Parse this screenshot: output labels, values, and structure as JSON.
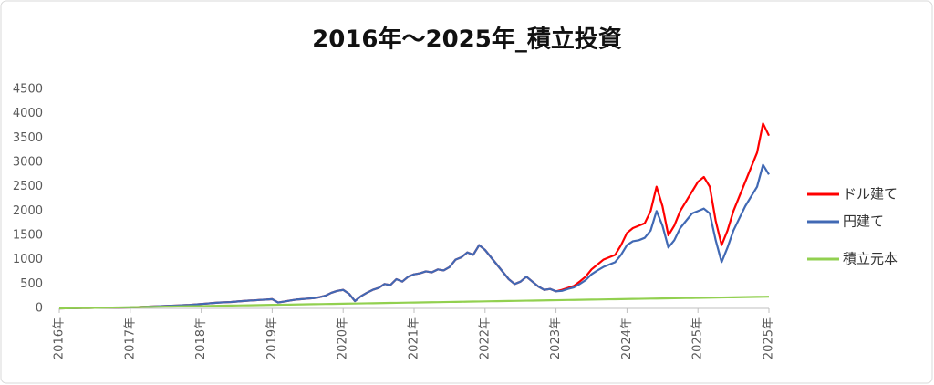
{
  "chart_data": {
    "type": "line",
    "title": "2016年～2025年_積立投資",
    "categories": [
      "2016年",
      null,
      null,
      null,
      null,
      null,
      null,
      null,
      null,
      null,
      null,
      null,
      "2017年",
      null,
      null,
      null,
      null,
      null,
      null,
      null,
      null,
      null,
      null,
      null,
      "2018年",
      null,
      null,
      null,
      null,
      null,
      null,
      null,
      null,
      null,
      null,
      null,
      "2019年",
      null,
      null,
      null,
      null,
      null,
      null,
      null,
      null,
      null,
      null,
      null,
      "2020年",
      null,
      null,
      null,
      null,
      null,
      null,
      null,
      null,
      null,
      null,
      null,
      "2021年",
      null,
      null,
      null,
      null,
      null,
      null,
      null,
      null,
      null,
      null,
      null,
      "2022年",
      null,
      null,
      null,
      null,
      null,
      null,
      null,
      null,
      null,
      null,
      null,
      "2023年",
      null,
      null,
      null,
      null,
      null,
      null,
      null,
      null,
      null,
      null,
      null,
      "2024年",
      null,
      null,
      null,
      null,
      null,
      null,
      null,
      null,
      null,
      null,
      null,
      "2025年",
      null,
      null,
      null,
      null,
      null,
      null,
      null,
      null,
      null,
      null,
      null,
      "2025年"
    ],
    "series": [
      {
        "name": "ドル建て",
        "color": "#ff0000",
        "values": [
          0,
          2,
          4,
          6,
          8,
          10,
          12,
          14,
          15,
          16,
          17,
          18,
          20,
          25,
          30,
          35,
          40,
          45,
          50,
          55,
          60,
          65,
          70,
          80,
          90,
          100,
          110,
          120,
          125,
          130,
          140,
          150,
          160,
          165,
          175,
          180,
          190,
          120,
          140,
          160,
          180,
          190,
          200,
          210,
          230,
          260,
          320,
          360,
          380,
          300,
          150,
          250,
          320,
          380,
          420,
          500,
          480,
          600,
          550,
          650,
          700,
          720,
          760,
          740,
          800,
          780,
          850,
          1000,
          1050,
          1150,
          1100,
          1300,
          1200,
          1050,
          900,
          750,
          600,
          500,
          550,
          650,
          550,
          450,
          380,
          400,
          350,
          380,
          420,
          460,
          550,
          650,
          800,
          900,
          1000,
          1050,
          1100,
          1300,
          1550,
          1650,
          1700,
          1750,
          2000,
          2500,
          2100,
          1500,
          1700,
          2000,
          2200,
          2400,
          2600,
          2700,
          2500,
          1800,
          1300,
          1600,
          2000,
          2300,
          2600,
          2900,
          3200,
          3800,
          3550
        ]
      },
      {
        "name": "円建て",
        "color": "#4169b4",
        "values": [
          0,
          2,
          4,
          6,
          8,
          10,
          12,
          14,
          15,
          16,
          17,
          18,
          20,
          25,
          30,
          35,
          40,
          45,
          50,
          55,
          60,
          65,
          70,
          80,
          90,
          100,
          110,
          120,
          125,
          130,
          140,
          150,
          160,
          165,
          175,
          180,
          190,
          120,
          140,
          160,
          180,
          190,
          200,
          210,
          230,
          260,
          320,
          360,
          380,
          300,
          150,
          250,
          320,
          380,
          420,
          500,
          480,
          600,
          550,
          650,
          700,
          720,
          760,
          740,
          800,
          780,
          850,
          1000,
          1050,
          1150,
          1100,
          1300,
          1200,
          1050,
          900,
          750,
          600,
          500,
          550,
          650,
          550,
          450,
          380,
          400,
          350,
          360,
          400,
          430,
          500,
          580,
          700,
          780,
          850,
          900,
          950,
          1100,
          1300,
          1380,
          1400,
          1450,
          1600,
          2000,
          1700,
          1250,
          1400,
          1650,
          1800,
          1950,
          2000,
          2050,
          1950,
          1400,
          950,
          1250,
          1600,
          1850,
          2100,
          2300,
          2500,
          2950,
          2750
        ]
      },
      {
        "name": "積立元本",
        "color": "#92d050",
        "values": [
          0,
          2,
          4,
          6,
          8,
          10,
          12,
          14,
          16,
          18,
          20,
          22,
          24,
          26,
          28,
          30,
          32,
          34,
          36,
          38,
          40,
          42,
          44,
          46,
          48,
          50,
          52,
          54,
          56,
          58,
          60,
          62,
          64,
          66,
          68,
          70,
          72,
          74,
          76,
          78,
          80,
          82,
          84,
          86,
          88,
          90,
          92,
          94,
          96,
          98,
          100,
          102,
          104,
          106,
          108,
          110,
          112,
          114,
          116,
          118,
          120,
          122,
          124,
          126,
          128,
          130,
          132,
          134,
          136,
          138,
          140,
          142,
          144,
          146,
          148,
          150,
          152,
          154,
          156,
          158,
          160,
          162,
          164,
          166,
          168,
          170,
          172,
          174,
          176,
          178,
          180,
          182,
          184,
          186,
          188,
          190,
          192,
          194,
          196,
          198,
          200,
          202,
          204,
          206,
          208,
          210,
          212,
          214,
          216,
          218,
          220,
          222,
          224,
          226,
          228,
          230,
          232,
          234,
          236,
          238,
          240
        ]
      }
    ],
    "ylim": [
      0,
      4500
    ],
    "yticks": [
      0,
      500,
      1000,
      1500,
      2000,
      2500,
      3000,
      3500,
      4000,
      4500
    ],
    "grid": false,
    "legend": "right"
  }
}
